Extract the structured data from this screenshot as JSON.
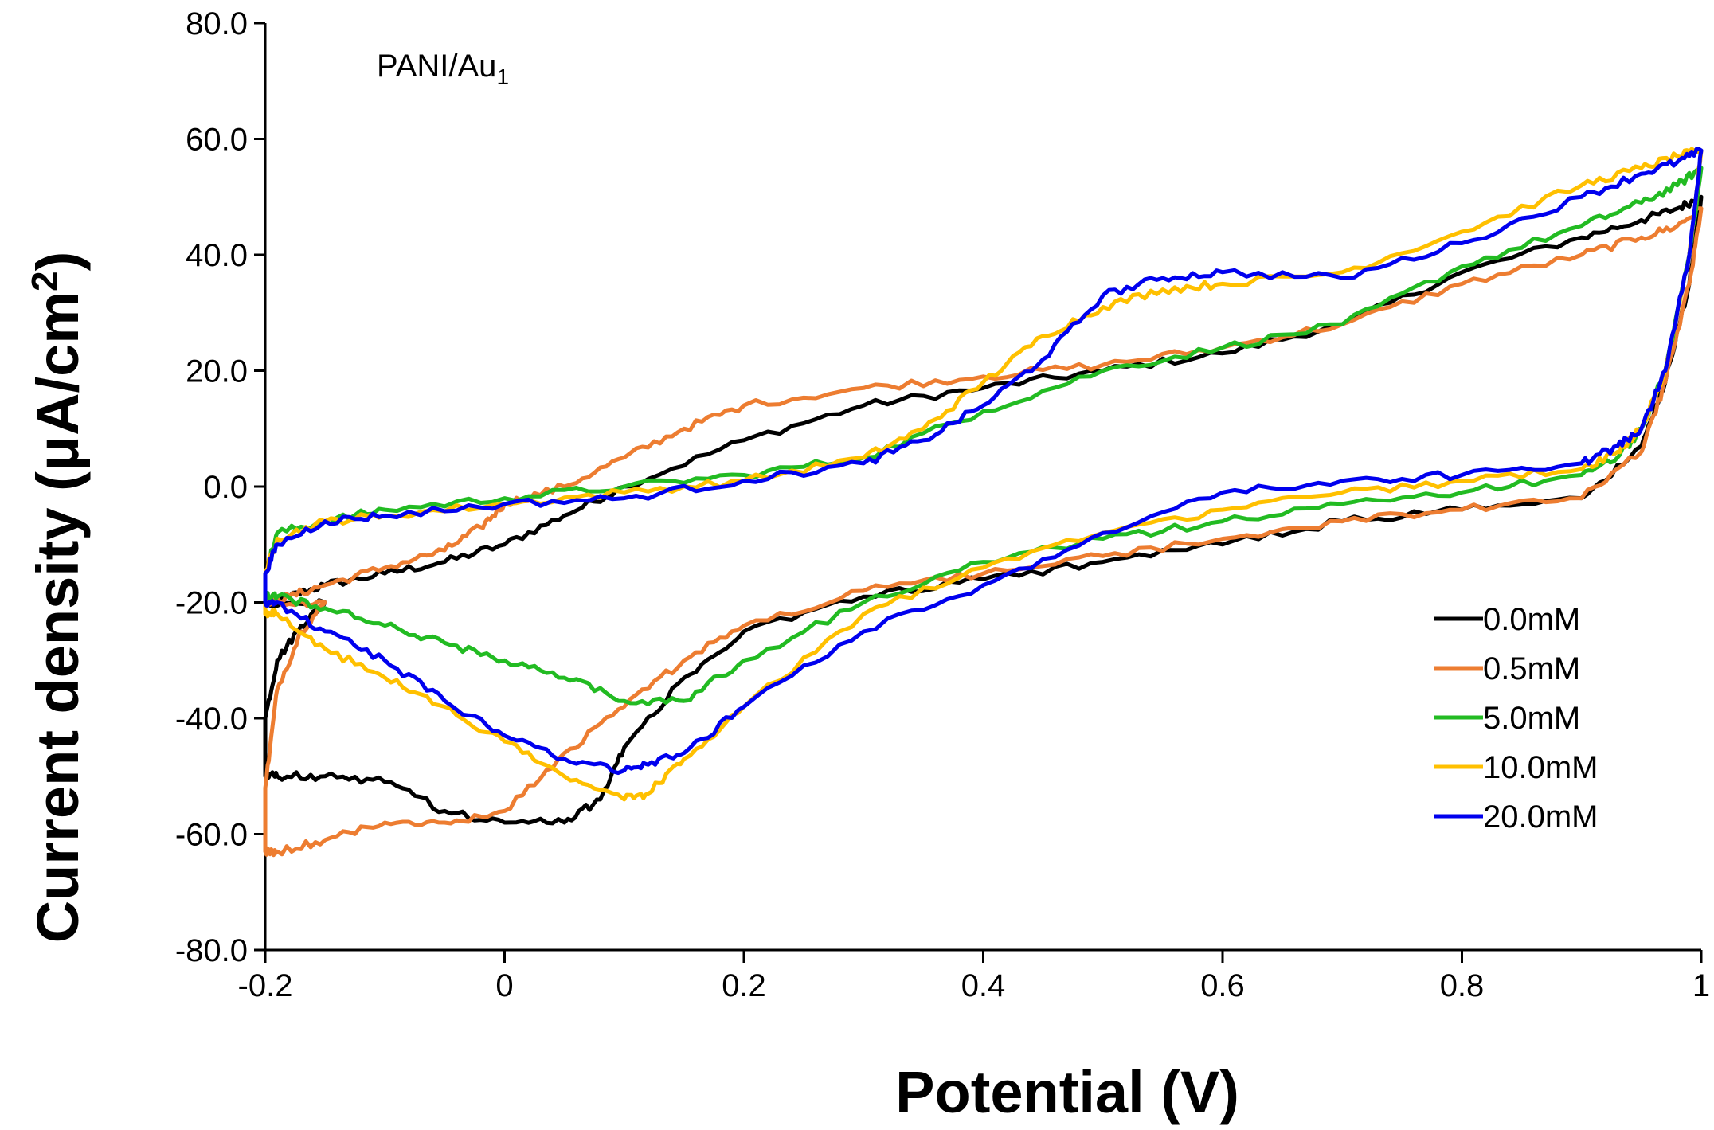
{
  "chart_data": {
    "type": "line",
    "title": "",
    "annotation": {
      "text": "PANI/Au",
      "subscript": "1"
    },
    "xlabel": "Potential (V)",
    "ylabel": "Current density (μA/cm",
    "ylabel_superscript": "2",
    "ylabel_close": ")",
    "xlim": [
      -0.2,
      1.0
    ],
    "ylim": [
      -80,
      80
    ],
    "x_ticks": [
      -0.2,
      0,
      0.2,
      0.4,
      0.6,
      0.8,
      1
    ],
    "x_tick_labels": [
      "-0.2",
      "0",
      "0.2",
      "0.4",
      "0.6",
      "0.8",
      "1"
    ],
    "y_ticks": [
      80,
      60,
      40,
      20,
      0,
      -20,
      -40,
      -60,
      -80
    ],
    "y_tick_labels": [
      "80.0",
      "60.0",
      "40.0",
      "20.0",
      "0.0",
      "-20.0",
      "-40.0",
      "-60.0",
      "-80.0"
    ],
    "grid": false,
    "legend_position": "bottom-right",
    "series": [
      {
        "name": "0.0mM",
        "color": "#000000",
        "x": [
          -0.2,
          -0.18,
          -0.15,
          -0.1,
          -0.05,
          0,
          0.05,
          0.1,
          0.2,
          0.3,
          0.4,
          0.5,
          0.6,
          0.7,
          0.8,
          0.9,
          0.95,
          0.98,
          1.0,
          0.99,
          0.97,
          0.95,
          0.9,
          0.8,
          0.7,
          0.6,
          0.5,
          0.4,
          0.3,
          0.2,
          0.15,
          0.1,
          0.08,
          0.05,
          0.0,
          -0.05,
          -0.1,
          -0.15,
          -0.19,
          -0.2,
          -0.2,
          -0.19,
          -0.17,
          -0.15,
          -0.2
        ],
        "y": [
          -20,
          -19,
          -17,
          -15,
          -13,
          -10,
          -5,
          0,
          8,
          14,
          17,
          20,
          23,
          28,
          37,
          43,
          46,
          48,
          50,
          35,
          18,
          7,
          -2,
          -4,
          -6,
          -10,
          -13,
          -16,
          -19,
          -25,
          -33,
          -45,
          -54,
          -58,
          -58,
          -56,
          -51,
          -50,
          -50,
          -50,
          -40,
          -30,
          -24,
          -20,
          -20
        ]
      },
      {
        "name": "0.5mM",
        "color": "#ED7D31",
        "x": [
          -0.2,
          -0.18,
          -0.15,
          -0.1,
          -0.05,
          -0.02,
          0,
          0.05,
          0.1,
          0.15,
          0.2,
          0.3,
          0.4,
          0.5,
          0.6,
          0.7,
          0.8,
          0.9,
          0.95,
          0.98,
          1.0,
          0.99,
          0.97,
          0.95,
          0.9,
          0.8,
          0.7,
          0.6,
          0.5,
          0.4,
          0.3,
          0.2,
          0.15,
          0.1,
          0.05,
          0.0,
          -0.05,
          -0.1,
          -0.15,
          -0.19,
          -0.2,
          -0.2,
          -0.19,
          -0.17,
          -0.15,
          -0.2
        ],
        "y": [
          -20,
          -19,
          -17,
          -14,
          -11,
          -7,
          -3,
          0,
          5,
          10,
          14,
          17,
          19,
          21,
          24,
          28,
          35,
          40,
          43,
          45,
          48,
          35,
          18,
          6,
          -2,
          -4,
          -6,
          -9,
          -12,
          -15,
          -18,
          -24,
          -30,
          -38,
          -46,
          -56,
          -58,
          -58,
          -61,
          -63,
          -63,
          -52,
          -35,
          -25,
          -20,
          -20
        ]
      },
      {
        "name": "5.0mM",
        "color": "#22BB22",
        "x": [
          -0.2,
          -0.19,
          -0.15,
          -0.1,
          0,
          0.1,
          0.2,
          0.3,
          0.4,
          0.5,
          0.6,
          0.7,
          0.8,
          0.9,
          0.95,
          0.98,
          1.0,
          0.99,
          0.97,
          0.95,
          0.93,
          0.9,
          0.8,
          0.7,
          0.6,
          0.5,
          0.4,
          0.3,
          0.2,
          0.15,
          0.1,
          0.05,
          0,
          -0.05,
          -0.1,
          -0.15,
          -0.19,
          -0.2,
          -0.2
        ],
        "y": [
          -15,
          -8,
          -6,
          -4,
          -2,
          0,
          2,
          5,
          13,
          20,
          24,
          28,
          38,
          45,
          49,
          52,
          55,
          40,
          20,
          10,
          5,
          2,
          -1,
          -3,
          -6,
          -9,
          -13,
          -20,
          -30,
          -37,
          -37,
          -33,
          -30,
          -27,
          -24,
          -21,
          -19,
          -19,
          -15
        ]
      },
      {
        "name": "10.0mM",
        "color": "#FFC000",
        "x": [
          -0.2,
          -0.19,
          -0.15,
          -0.1,
          0,
          0.1,
          0.2,
          0.3,
          0.35,
          0.4,
          0.45,
          0.5,
          0.55,
          0.6,
          0.7,
          0.8,
          0.9,
          0.95,
          0.98,
          1.0,
          0.99,
          0.97,
          0.95,
          0.93,
          0.9,
          0.8,
          0.7,
          0.6,
          0.5,
          0.4,
          0.3,
          0.2,
          0.15,
          0.12,
          0.1,
          0.05,
          0,
          -0.05,
          -0.1,
          -0.15,
          -0.19,
          -0.2,
          -0.2
        ],
        "y": [
          -15,
          -9,
          -6,
          -5,
          -3,
          -1,
          1,
          5,
          10,
          18,
          26,
          31,
          34,
          35,
          37,
          44,
          52,
          55,
          57,
          58,
          40,
          20,
          10,
          6,
          3,
          1,
          -1,
          -4,
          -8,
          -14,
          -22,
          -38,
          -47,
          -53,
          -54,
          -50,
          -44,
          -38,
          -33,
          -28,
          -22,
          -22,
          -15
        ]
      },
      {
        "name": "20.0mM",
        "color": "#0000EE",
        "x": [
          -0.2,
          -0.19,
          -0.15,
          -0.1,
          0,
          0.1,
          0.2,
          0.3,
          0.35,
          0.4,
          0.45,
          0.5,
          0.55,
          0.6,
          0.7,
          0.8,
          0.9,
          0.95,
          0.98,
          1.0,
          0.99,
          0.97,
          0.95,
          0.93,
          0.9,
          0.8,
          0.7,
          0.6,
          0.5,
          0.4,
          0.3,
          0.2,
          0.15,
          0.12,
          0.1,
          0.05,
          0,
          -0.05,
          -0.1,
          -0.15,
          -0.19,
          -0.2,
          -0.2
        ],
        "y": [
          -15,
          -10,
          -6,
          -5,
          -3,
          -2,
          1,
          4,
          8,
          14,
          22,
          33,
          36,
          37,
          36,
          42,
          50,
          54,
          56,
          58,
          40,
          20,
          10,
          7,
          4,
          2,
          1,
          -1,
          -8,
          -17,
          -25,
          -38,
          -46,
          -48,
          -49,
          -47,
          -43,
          -37,
          -30,
          -25,
          -20,
          -20,
          -15
        ]
      }
    ]
  }
}
